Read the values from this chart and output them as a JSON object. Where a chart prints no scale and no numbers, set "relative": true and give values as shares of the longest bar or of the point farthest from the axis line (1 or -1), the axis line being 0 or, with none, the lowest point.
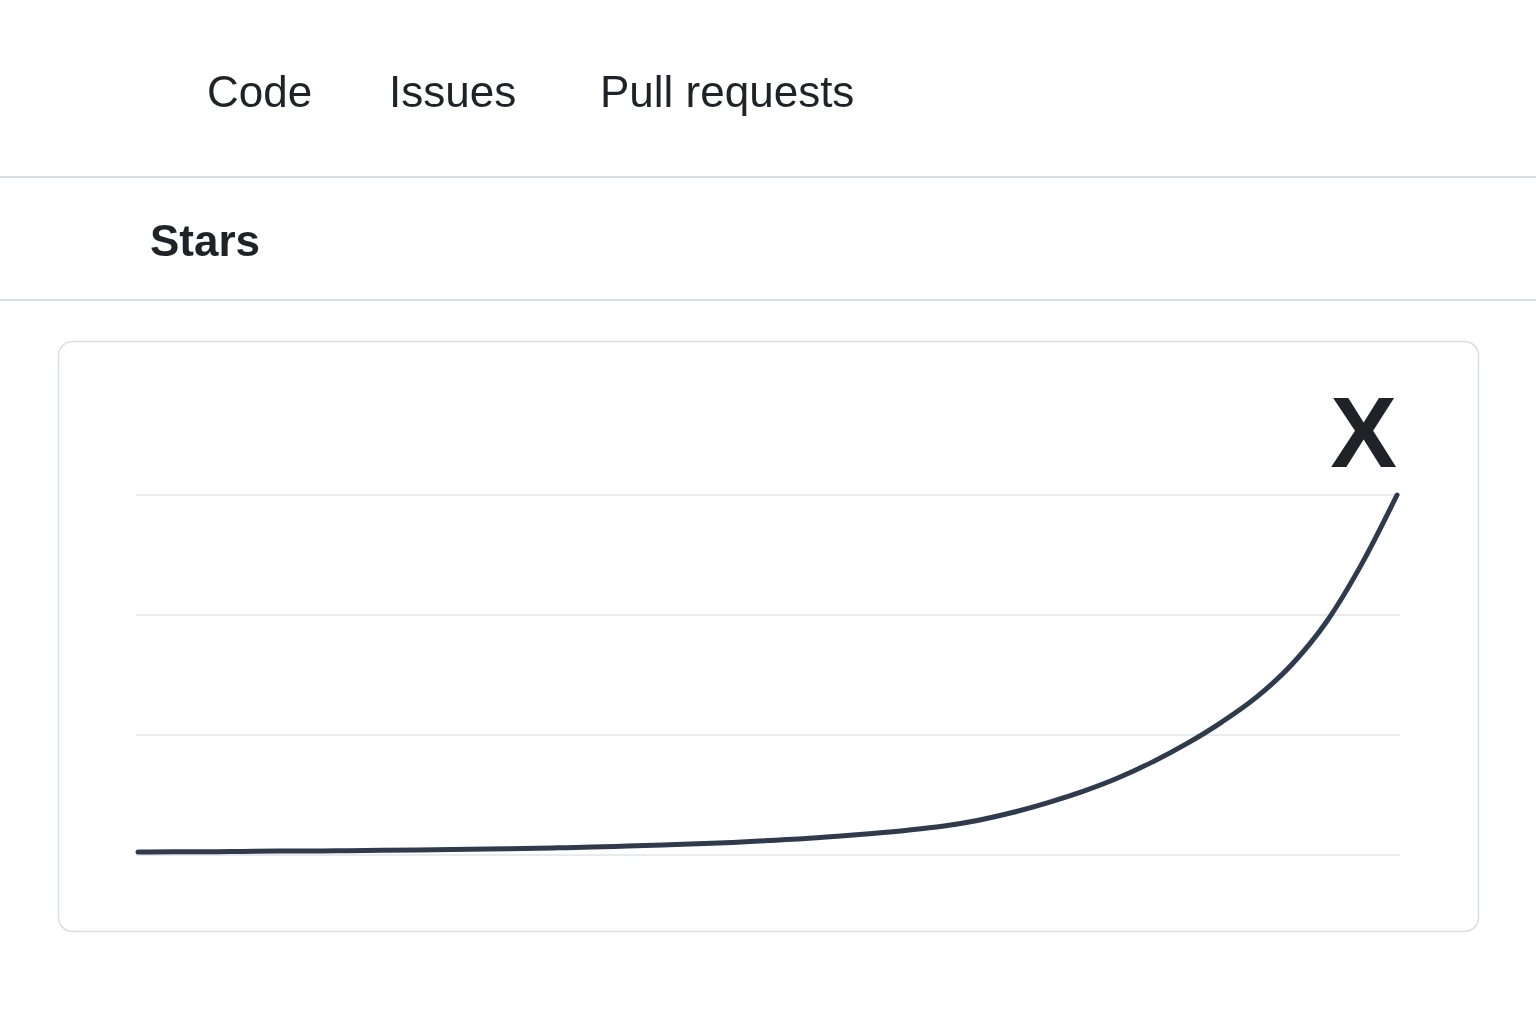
{
  "chart_data": {
    "type": "line",
    "title": "Stars",
    "annotations": [
      "Code",
      "Issues",
      "Pull requests",
      "X"
    ],
    "categories": [
      null,
      null,
      null,
      null,
      null,
      null,
      null,
      null,
      null,
      null,
      null,
      null,
      null,
      null,
      null,
      null,
      null,
      null,
      null,
      null,
      null,
      null,
      null,
      null,
      null,
      null,
      null,
      null,
      null,
      null,
      null,
      null,
      null,
      null,
      null,
      null,
      null
    ],
    "values": [
      0.008,
      0.009,
      0.009,
      0.01,
      0.011,
      0.011,
      0.012,
      0.013,
      0.014,
      0.015,
      0.017,
      0.018,
      0.02,
      0.022,
      0.025,
      0.028,
      0.031,
      0.035,
      0.04,
      0.045,
      0.052,
      0.06,
      0.069,
      0.08,
      0.096,
      0.118,
      0.145,
      0.176,
      0.213,
      0.258,
      0.31,
      0.37,
      0.44,
      0.53,
      0.65,
      0.81,
      1.0
    ],
    "color": "#2f3b4c",
    "relative": true,
    "ref_lines": [
      {
        "axis": "y",
        "value": 0.333,
        "color": "#e1e4e8"
      },
      {
        "axis": "y",
        "value": 0.667,
        "color": "#e1e4e8"
      },
      {
        "axis": "y",
        "value": 1,
        "color": "#e1e4e8"
      }
    ]
  }
}
